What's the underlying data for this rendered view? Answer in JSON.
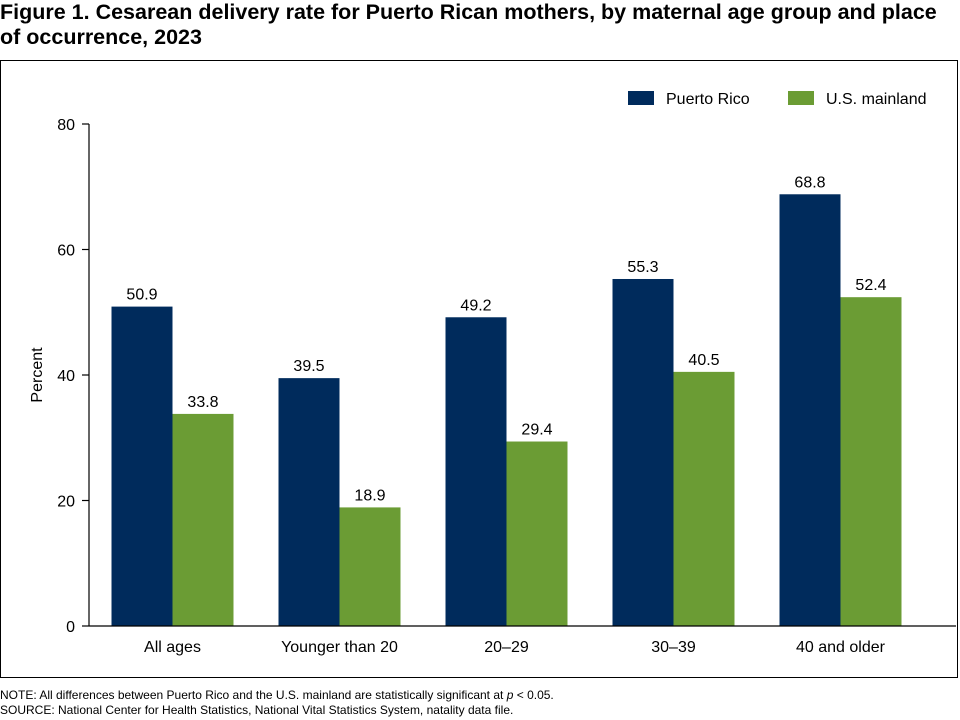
{
  "figure": {
    "title": "Figure 1. Cesarean delivery rate for Puerto Rican mothers, by maternal age group and place of occurrence, 2023"
  },
  "notes": {
    "note_prefix": "NOTE: All differences between Puerto Rico and the U.S. mainland are statistically significant at ",
    "note_var": "p",
    "note_suffix": " < 0.05.",
    "source": "SOURCE: National Center for Health Statistics, National Vital Statistics System, natality data file."
  },
  "colors": {
    "puerto_rico": "#002b5c",
    "us_mainland": "#6b9c34"
  },
  "chart_data": {
    "type": "bar",
    "categories": [
      "All ages",
      "Younger than 20",
      "20–29",
      "30–39",
      "40 and older"
    ],
    "series": [
      {
        "name": "Puerto Rico",
        "values": [
          50.9,
          39.5,
          49.2,
          55.3,
          68.8
        ],
        "labels": [
          "50.9",
          "39.5",
          "49.2",
          "55.3",
          "68.8"
        ]
      },
      {
        "name": "U.S. mainland",
        "values": [
          33.8,
          18.9,
          29.4,
          40.5,
          52.4
        ],
        "labels": [
          "33.8",
          "18.9",
          "29.4",
          "40.5",
          "52.4"
        ]
      }
    ],
    "ylabel": "Percent",
    "ylim": [
      0,
      80
    ],
    "yticks": [
      "0",
      "20",
      "40",
      "60",
      "80"
    ],
    "grid": false,
    "legend_position": "top-right"
  }
}
